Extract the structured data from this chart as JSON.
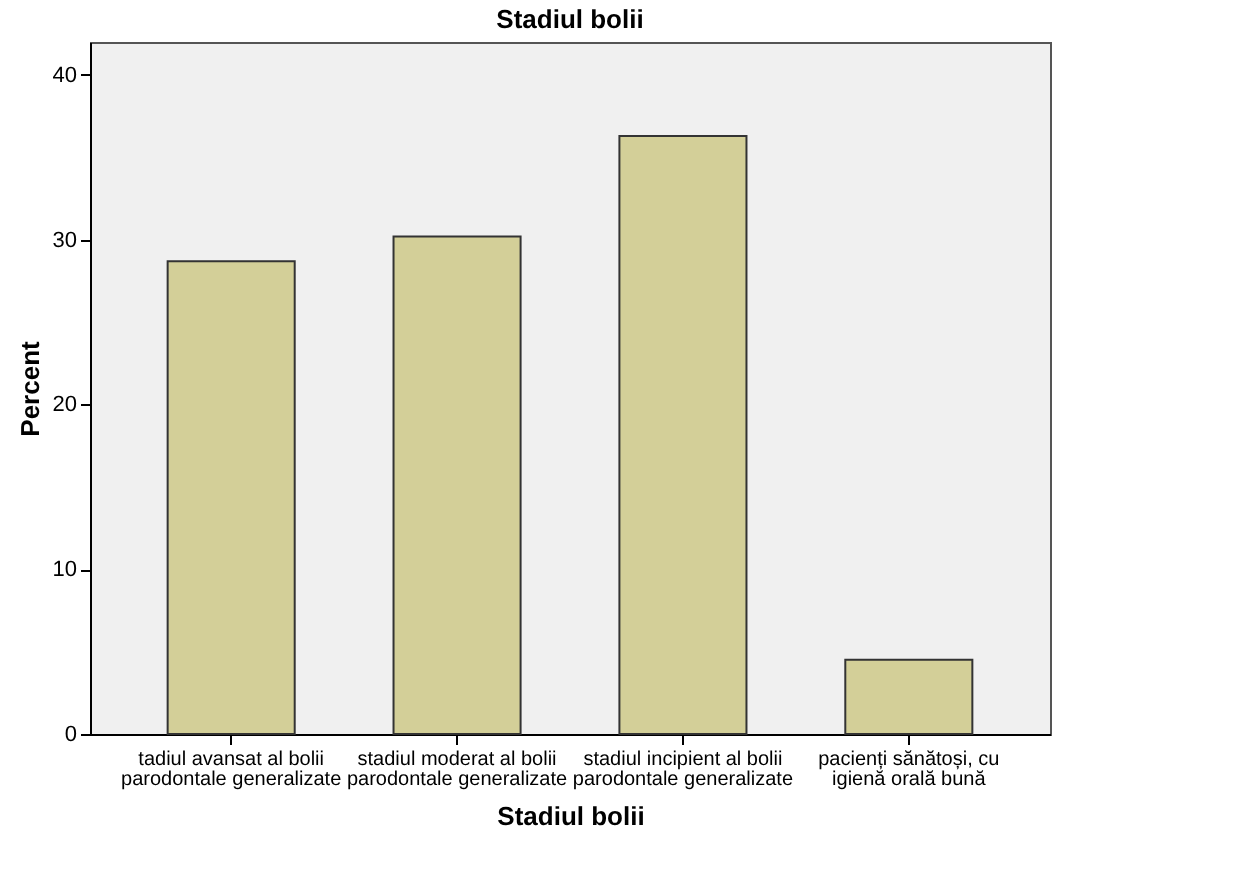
{
  "chart_data": {
    "type": "bar",
    "title": "Stadiul bolii",
    "xlabel": "Stadiul bolii",
    "ylabel": "Percent",
    "categories": [
      "tadiul avansat al bolii\nparodontale generalizate",
      "stadiul moderat al bolii\nparodontale generalizate",
      "stadiul incipient al bolii\nparodontale generalizate",
      "pacienți sănătoși, cu\nigienă orală bună"
    ],
    "values": [
      28.7,
      30.2,
      36.3,
      4.5
    ],
    "color": "#d3cf98",
    "ylim": [
      0,
      42
    ],
    "yticks": [
      0,
      10,
      20,
      30,
      40
    ],
    "grid": false
  }
}
